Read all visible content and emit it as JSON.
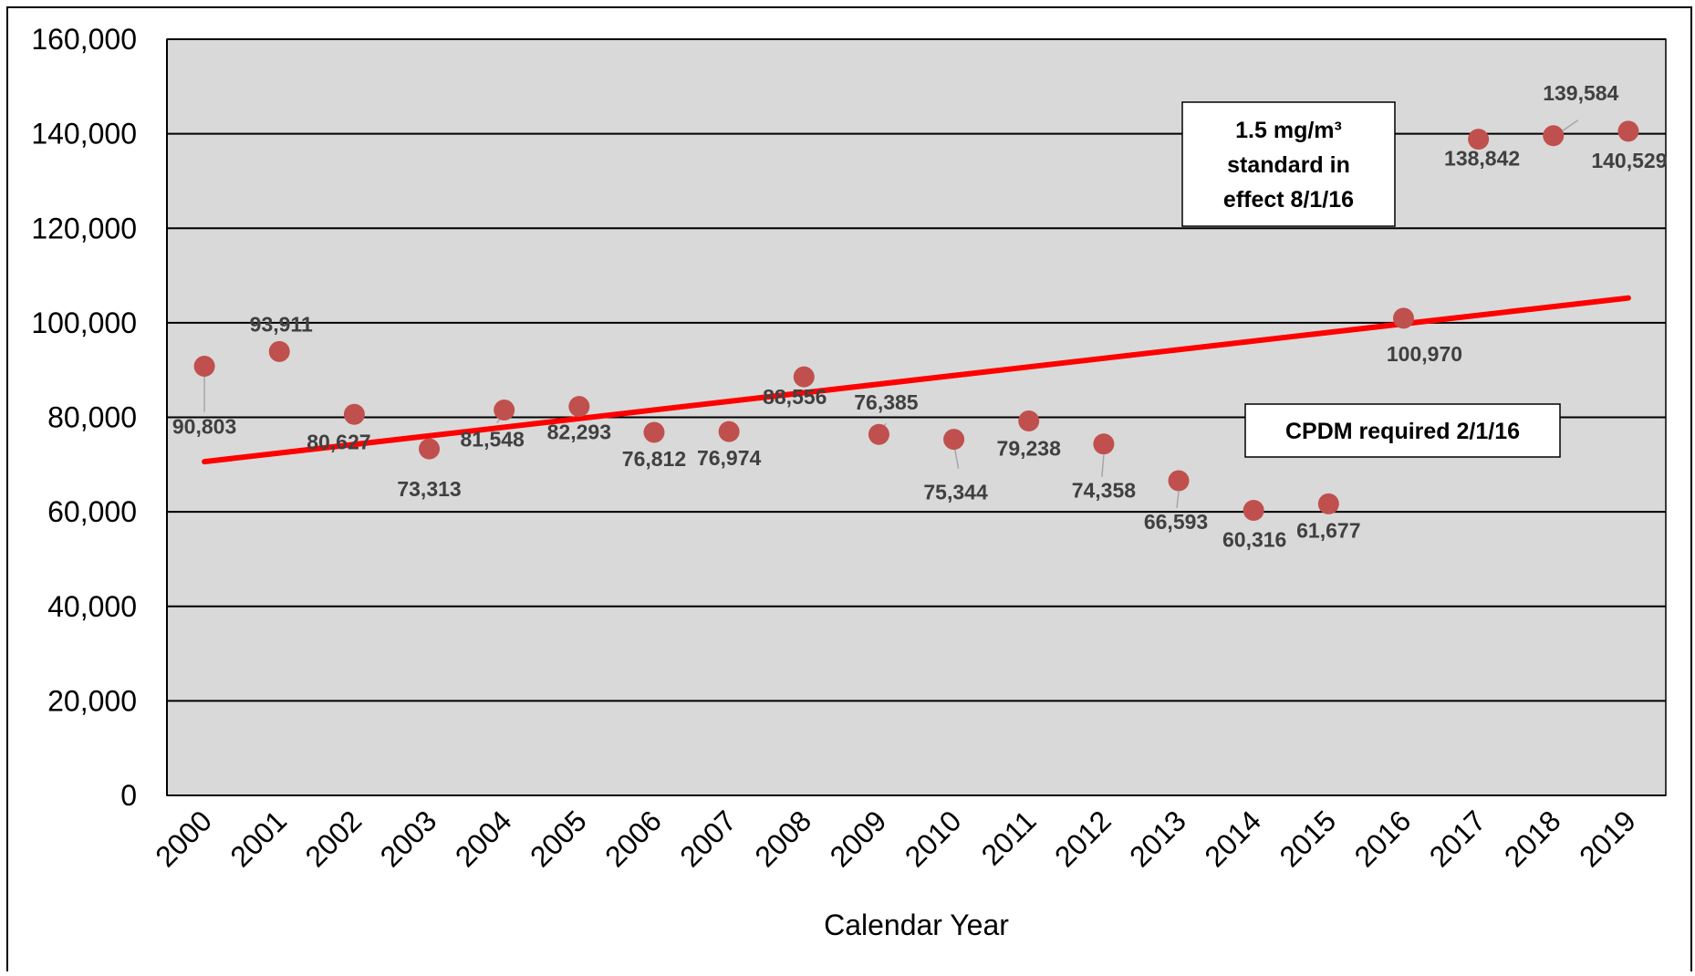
{
  "chart_data": {
    "type": "scatter",
    "title": "",
    "xlabel": "Calendar Year",
    "ylabel": "",
    "x": [
      "2000",
      "2001",
      "2002",
      "2003",
      "2004",
      "2005",
      "2006",
      "2007",
      "2008",
      "2009",
      "2010",
      "2011",
      "2012",
      "2013",
      "2014",
      "2015",
      "2016",
      "2017",
      "2018",
      "2019"
    ],
    "y": [
      90803,
      93911,
      80627,
      73313,
      81548,
      82293,
      76812,
      76974,
      88556,
      76385,
      75344,
      79238,
      74358,
      66593,
      60316,
      61677,
      100970,
      138842,
      139584,
      140529
    ],
    "data_labels": [
      "90,803",
      "93,911",
      "80,627",
      "73,313",
      "81,548",
      "82,293",
      "76,812",
      "76,974",
      "88,556",
      "76,385",
      "75,344",
      "79,238",
      "74,358",
      "66,593",
      "60,316",
      "61,677",
      "100,970",
      "138,842",
      "139,584",
      "140,529"
    ],
    "trendline": {
      "type": "linear",
      "color": "#ff0000"
    },
    "ylim": [
      0,
      160000
    ],
    "yticks": [
      "0",
      "20,000",
      "40,000",
      "60,000",
      "80,000",
      "100,000",
      "120,000",
      "140,000",
      "160,000"
    ],
    "grid": true,
    "legend": "none",
    "annotations": [
      {
        "lines": [
          "1.5 mg/m³",
          "standard in",
          "effect 8/1/16"
        ]
      },
      {
        "lines": [
          "CPDM required 2/1/16"
        ]
      }
    ],
    "colors": {
      "marker": "#c0504d",
      "trendline": "#ff0000",
      "plot_background": "#d9d9d9",
      "gridline": "#000000",
      "label_text": "#404040"
    }
  }
}
